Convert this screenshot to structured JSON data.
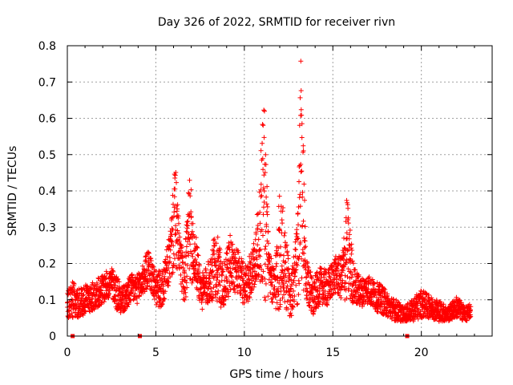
{
  "chart_data": {
    "type": "scatter",
    "title": "Day 326 of 2022, SRMTID for receiver rivn",
    "xlabel": "GPS time / hours",
    "ylabel": "SRMTID / TECUs",
    "xlim": [
      0,
      24
    ],
    "ylim": [
      0,
      0.8
    ],
    "x_ticks": [
      0,
      5,
      10,
      15,
      20
    ],
    "x_tick_labels": [
      "0",
      "5",
      "10",
      "15",
      "20"
    ],
    "y_ticks": [
      0,
      0.1,
      0.2,
      0.3,
      0.4,
      0.5,
      0.6,
      0.7,
      0.8
    ],
    "y_tick_labels": [
      "0",
      "0.1",
      "0.2",
      "0.3",
      "0.4",
      "0.5",
      "0.6",
      "0.7",
      "0.8"
    ],
    "grid": true,
    "marker": "plus",
    "series_color": "#ff0000",
    "gap_markers_x": [
      0.3,
      4.1,
      19.2
    ],
    "envelope": [
      [
        0.0,
        0.09,
        0.04
      ],
      [
        0.3,
        0.1,
        0.05
      ],
      [
        0.6,
        0.09,
        0.04
      ],
      [
        1.0,
        0.1,
        0.04
      ],
      [
        1.5,
        0.11,
        0.04
      ],
      [
        2.0,
        0.13,
        0.04
      ],
      [
        2.5,
        0.15,
        0.04
      ],
      [
        2.8,
        0.12,
        0.05
      ],
      [
        3.2,
        0.1,
        0.04
      ],
      [
        3.6,
        0.13,
        0.04
      ],
      [
        4.0,
        0.13,
        0.04
      ],
      [
        4.3,
        0.16,
        0.05
      ],
      [
        4.6,
        0.19,
        0.05
      ],
      [
        5.0,
        0.13,
        0.05
      ],
      [
        5.4,
        0.13,
        0.05
      ],
      [
        5.8,
        0.22,
        0.07
      ],
      [
        6.1,
        0.33,
        0.15
      ],
      [
        6.3,
        0.24,
        0.08
      ],
      [
        6.6,
        0.14,
        0.06
      ],
      [
        6.9,
        0.3,
        0.15
      ],
      [
        7.2,
        0.22,
        0.08
      ],
      [
        7.6,
        0.12,
        0.05
      ],
      [
        8.0,
        0.15,
        0.06
      ],
      [
        8.4,
        0.2,
        0.1
      ],
      [
        8.8,
        0.13,
        0.06
      ],
      [
        9.2,
        0.2,
        0.08
      ],
      [
        9.6,
        0.18,
        0.06
      ],
      [
        10.0,
        0.14,
        0.06
      ],
      [
        10.4,
        0.17,
        0.06
      ],
      [
        10.8,
        0.26,
        0.1
      ],
      [
        11.1,
        0.4,
        0.32
      ],
      [
        11.4,
        0.17,
        0.06
      ],
      [
        11.7,
        0.13,
        0.06
      ],
      [
        12.0,
        0.24,
        0.18
      ],
      [
        12.3,
        0.2,
        0.12
      ],
      [
        12.6,
        0.1,
        0.05
      ],
      [
        13.0,
        0.2,
        0.12
      ],
      [
        13.2,
        0.45,
        0.34
      ],
      [
        13.5,
        0.15,
        0.06
      ],
      [
        13.9,
        0.11,
        0.05
      ],
      [
        14.3,
        0.14,
        0.05
      ],
      [
        14.7,
        0.13,
        0.05
      ],
      [
        15.1,
        0.17,
        0.05
      ],
      [
        15.5,
        0.16,
        0.06
      ],
      [
        15.8,
        0.24,
        0.15
      ],
      [
        16.2,
        0.14,
        0.05
      ],
      [
        16.6,
        0.12,
        0.04
      ],
      [
        17.0,
        0.13,
        0.04
      ],
      [
        17.4,
        0.11,
        0.04
      ],
      [
        17.8,
        0.1,
        0.04
      ],
      [
        18.2,
        0.08,
        0.03
      ],
      [
        18.6,
        0.07,
        0.03
      ],
      [
        19.0,
        0.06,
        0.02
      ],
      [
        19.5,
        0.07,
        0.03
      ],
      [
        20.0,
        0.09,
        0.04
      ],
      [
        20.5,
        0.08,
        0.03
      ],
      [
        21.0,
        0.07,
        0.03
      ],
      [
        21.5,
        0.06,
        0.02
      ],
      [
        22.0,
        0.08,
        0.03
      ],
      [
        22.5,
        0.06,
        0.02
      ],
      [
        22.8,
        0.07,
        0.02
      ]
    ]
  }
}
